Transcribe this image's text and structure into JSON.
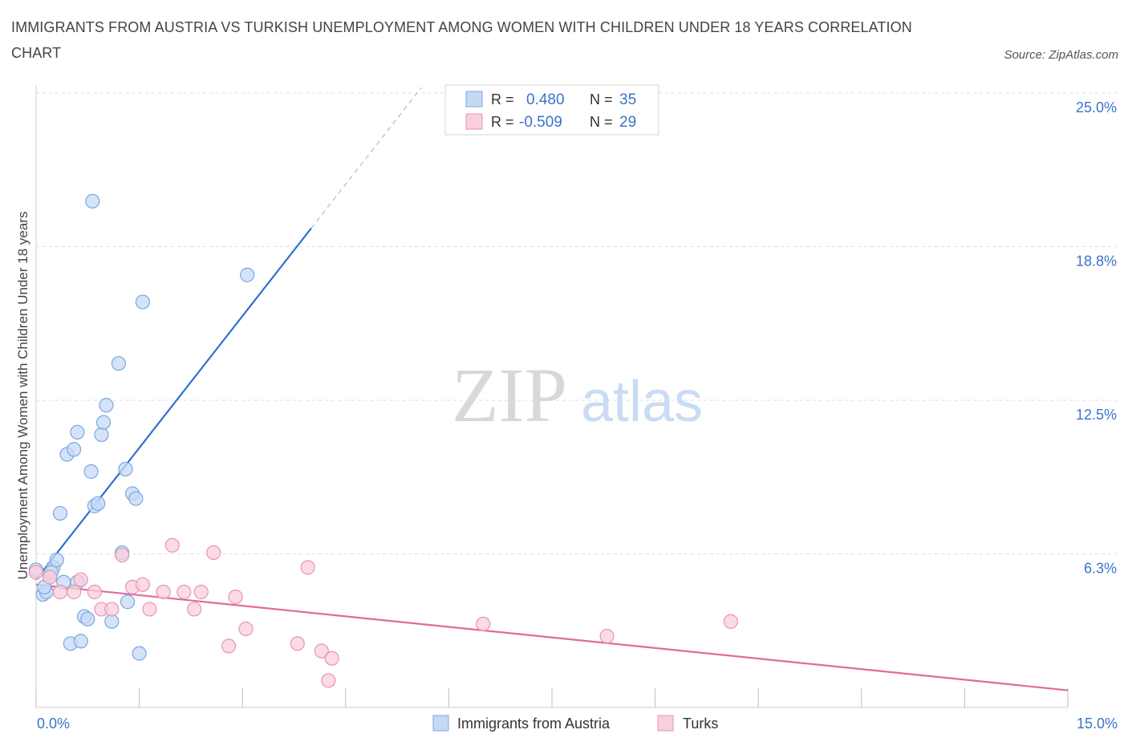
{
  "title": "IMMIGRANTS FROM AUSTRIA VS TURKISH UNEMPLOYMENT AMONG WOMEN WITH CHILDREN UNDER 18 YEARS CORRELATION CHART",
  "source": "Source: ZipAtlas.com",
  "watermark": {
    "zip": "ZIP",
    "atlas": "atlas"
  },
  "colors": {
    "blue_fill": "#c5d9f5",
    "blue_stroke": "#7aa6e0",
    "blue_line": "#2f6fd0",
    "pink_fill": "#f9cfdc",
    "pink_stroke": "#e993b0",
    "pink_line": "#e06b99",
    "tick_label": "#3a74c8",
    "grid": "#dddddd"
  },
  "legend_box": {
    "rows": [
      {
        "r_label": "R =",
        "r_value": "0.480",
        "n_label": "N =",
        "n_value": "35",
        "series": "blue"
      },
      {
        "r_label": "R =",
        "r_value": "-0.509",
        "n_label": "N =",
        "n_value": "29",
        "series": "pink"
      }
    ]
  },
  "chart_data": {
    "type": "scatter",
    "title": "IMMIGRANTS FROM AUSTRIA VS TURKISH UNEMPLOYMENT AMONG WOMEN WITH CHILDREN UNDER 18 YEARS CORRELATION CHART",
    "xlabel": "",
    "ylabel": "Unemployment Among Women with Children Under 18 years",
    "xlim": [
      0,
      15
    ],
    "ylim": [
      0,
      25
    ],
    "x_tick_labels": [
      {
        "value": 0,
        "label": "0.0%"
      },
      {
        "value": 15,
        "label": "15.0%"
      }
    ],
    "y_tick_labels": [
      {
        "value": 6.25,
        "label": "6.3%"
      },
      {
        "value": 12.5,
        "label": "12.5%"
      },
      {
        "value": 18.75,
        "label": "18.8%"
      },
      {
        "value": 25,
        "label": "25.0%"
      }
    ],
    "legend": [
      "Immigrants from Austria",
      "Turks"
    ],
    "series": [
      {
        "name": "Immigrants from Austria",
        "color": "blue",
        "points": [
          [
            0.0,
            5.6
          ],
          [
            0.1,
            4.6
          ],
          [
            0.15,
            4.7
          ],
          [
            0.2,
            5.3
          ],
          [
            0.25,
            5.7
          ],
          [
            0.3,
            6.0
          ],
          [
            0.35,
            7.9
          ],
          [
            0.4,
            5.1
          ],
          [
            0.45,
            10.3
          ],
          [
            0.5,
            2.6
          ],
          [
            0.55,
            10.5
          ],
          [
            0.6,
            11.2
          ],
          [
            0.65,
            2.7
          ],
          [
            0.7,
            3.7
          ],
          [
            0.75,
            3.6
          ],
          [
            0.8,
            9.6
          ],
          [
            0.82,
            20.6
          ],
          [
            0.85,
            8.2
          ],
          [
            0.9,
            8.3
          ],
          [
            0.95,
            11.1
          ],
          [
            0.98,
            11.6
          ],
          [
            1.02,
            12.3
          ],
          [
            1.1,
            3.5
          ],
          [
            1.2,
            14.0
          ],
          [
            1.25,
            6.3
          ],
          [
            1.3,
            9.7
          ],
          [
            1.33,
            4.3
          ],
          [
            1.4,
            8.7
          ],
          [
            1.45,
            8.5
          ],
          [
            1.5,
            2.2
          ],
          [
            1.55,
            16.5
          ],
          [
            3.07,
            17.6
          ],
          [
            0.12,
            4.9
          ],
          [
            0.22,
            5.5
          ],
          [
            0.6,
            5.1
          ]
        ]
      },
      {
        "name": "Turks",
        "color": "pink",
        "points": [
          [
            0.0,
            5.5
          ],
          [
            0.2,
            5.3
          ],
          [
            0.35,
            4.7
          ],
          [
            0.55,
            4.7
          ],
          [
            0.65,
            5.2
          ],
          [
            0.85,
            4.7
          ],
          [
            0.95,
            4.0
          ],
          [
            1.1,
            4.0
          ],
          [
            1.25,
            6.2
          ],
          [
            1.4,
            4.9
          ],
          [
            1.55,
            5.0
          ],
          [
            1.65,
            4.0
          ],
          [
            1.85,
            4.7
          ],
          [
            1.98,
            6.6
          ],
          [
            2.15,
            4.7
          ],
          [
            2.3,
            4.0
          ],
          [
            2.4,
            4.7
          ],
          [
            2.58,
            6.3
          ],
          [
            2.8,
            2.5
          ],
          [
            2.9,
            4.5
          ],
          [
            3.05,
            3.2
          ],
          [
            3.8,
            2.6
          ],
          [
            3.95,
            5.7
          ],
          [
            4.15,
            2.3
          ],
          [
            4.3,
            2.0
          ],
          [
            4.25,
            1.1
          ],
          [
            6.5,
            3.4
          ],
          [
            8.3,
            2.9
          ],
          [
            10.1,
            3.5
          ]
        ]
      }
    ],
    "trendlines": [
      {
        "series": "Immigrants from Austria",
        "x0": 0.0,
        "y0": 5.2,
        "x1": 4.0,
        "y1": 19.5,
        "dashed_to_x": 5.6
      },
      {
        "series": "Turks",
        "x0": 0.0,
        "y0": 5.0,
        "x1": 15.0,
        "y1": 0.7
      }
    ]
  }
}
